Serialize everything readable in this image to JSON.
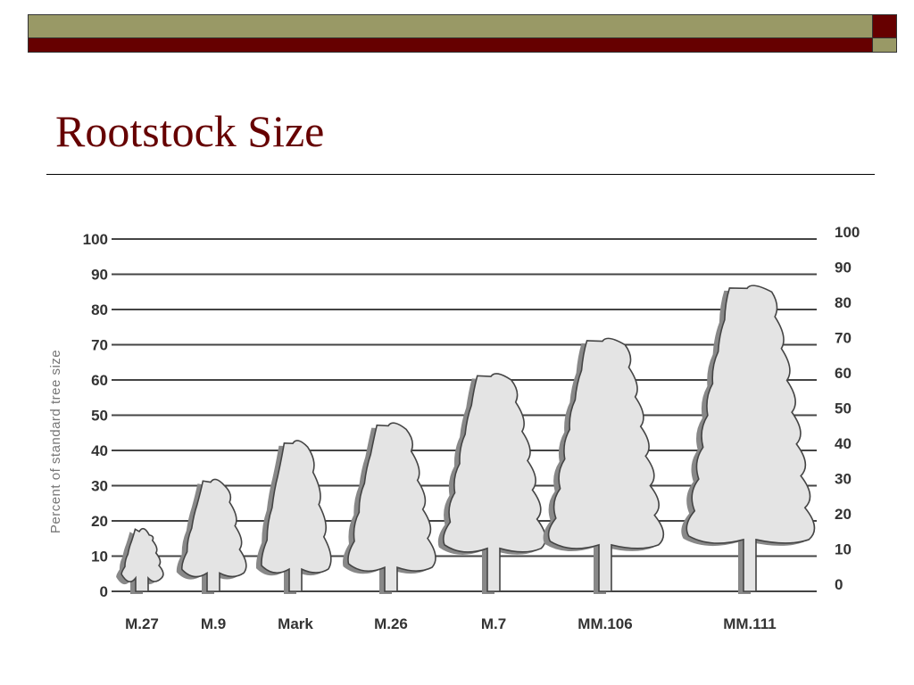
{
  "slide": {
    "title": "Rootstock Size",
    "colors": {
      "olive": "#999966",
      "maroon": "#660000",
      "title": "#660000"
    }
  },
  "chart_data": {
    "type": "bar",
    "style": "pictogram-trees",
    "title": "",
    "xlabel": "",
    "ylabel": "Percent of standard tree size",
    "ylim": [
      0,
      100
    ],
    "yticks": [
      0,
      10,
      20,
      30,
      40,
      50,
      60,
      70,
      80,
      90,
      100
    ],
    "y_axis_both_sides": true,
    "grid": true,
    "categories": [
      "M.27",
      "M.9",
      "Mark",
      "M.26",
      "M.7",
      "MM.106",
      "MM.111"
    ],
    "values": [
      18,
      32,
      43,
      48,
      62,
      72,
      87
    ]
  }
}
